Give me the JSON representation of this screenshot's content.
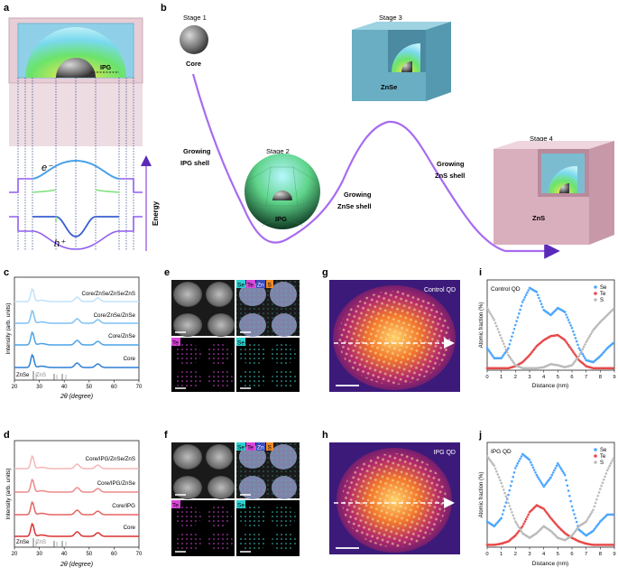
{
  "panels": {
    "a": "a",
    "b": "b",
    "c": "c",
    "d": "d",
    "e": "e",
    "f": "f",
    "g": "g",
    "h": "h",
    "i": "i",
    "j": "j"
  },
  "panel_a": {
    "ipg": "IPG",
    "electron": "e⁻",
    "hole": "h⁺",
    "energy": "Energy"
  },
  "panel_b": {
    "stage1": "Stage 1",
    "core": "Core",
    "stage2": "Stage 2",
    "ipg": "IPG",
    "stage3": "Stage 3",
    "znse": "ZnSe",
    "stage4": "Stage 4",
    "zns": "ZnS",
    "growing_ipg": [
      "Growing",
      "IPG shell"
    ],
    "growing_znse": [
      "Growing",
      "ZnSe shell"
    ],
    "growing_zns": [
      "Growing",
      "ZnS shell"
    ]
  },
  "xrd_common": {
    "ylabel": "Intensity (arb. units)",
    "xlabel": "2θ (degree)",
    "xticks": [
      "20",
      "30",
      "40",
      "50",
      "60",
      "70"
    ],
    "ref_znse": "ZnSe",
    "ref_zns": "ZnS"
  },
  "xrd_c_labels": [
    "Core/ZnSe/ZnSe/ZnS",
    "Core/ZnSe/ZnSe",
    "Core/ZnSe",
    "Core"
  ],
  "xrd_d_labels": [
    "Core/IPG/ZnSe/ZnS",
    "Core/IPG/ZnSe",
    "Core/IPG",
    "Core"
  ],
  "eds_tags": {
    "se": "Se",
    "te": "Te",
    "zn": "Zn",
    "s": "S"
  },
  "haadf": {
    "control": "Control QD",
    "ipg": "IPG QD"
  },
  "profile_common": {
    "ylabel": "Atomic fraction (%)",
    "xlabel": "Distance (nm)",
    "xticks": [
      "0",
      "1",
      "2",
      "3",
      "4",
      "5",
      "6",
      "7",
      "8",
      "9"
    ],
    "legend": [
      "Se",
      "Te",
      "S"
    ]
  },
  "profile_i_title": "Control QD",
  "profile_j_title": "IPG QD",
  "colors": {
    "se_dot": "#4da6ff",
    "te_dot": "#e84a4a",
    "s_dot": "#bbbbbb",
    "tag_se": "#2bd1d1",
    "tag_te": "#d946d9",
    "tag_zn": "#3b4cc0",
    "tag_s": "#f08a24",
    "arrow": "#a86bf0"
  },
  "chart_data": [
    {
      "type": "line",
      "panel": "c",
      "xlabel": "2θ (degree)",
      "ylabel": "Intensity (arb. units)",
      "xlim": [
        20,
        70
      ],
      "series": [
        {
          "name": "Core/ZnSe/ZnSe/ZnS"
        },
        {
          "name": "Core/ZnSe/ZnSe"
        },
        {
          "name": "Core/ZnSe"
        },
        {
          "name": "Core"
        }
      ]
    },
    {
      "type": "line",
      "panel": "d",
      "xlabel": "2θ (degree)",
      "ylabel": "Intensity (arb. units)",
      "xlim": [
        20,
        70
      ],
      "series": [
        {
          "name": "Core/IPG/ZnSe/ZnS"
        },
        {
          "name": "Core/IPG/ZnSe"
        },
        {
          "name": "Core/IPG"
        },
        {
          "name": "Core"
        }
      ]
    },
    {
      "type": "scatter",
      "panel": "i",
      "title": "Control QD",
      "xlabel": "Distance (nm)",
      "ylabel": "Atomic fraction (%)",
      "xlim": [
        0,
        9
      ],
      "series": [
        {
          "name": "Se",
          "x": [
            0,
            0.5,
            1,
            1.5,
            2,
            2.5,
            3,
            3.5,
            4,
            4.5,
            5,
            5.5,
            6,
            6.5,
            7,
            7.5,
            8,
            8.5,
            9
          ],
          "y": [
            22,
            12,
            12,
            22,
            45,
            68,
            82,
            78,
            60,
            55,
            62,
            58,
            42,
            22,
            10,
            8,
            14,
            22,
            28
          ]
        },
        {
          "name": "Te",
          "x": [
            0,
            0.5,
            1,
            1.5,
            2,
            2.5,
            3,
            3.5,
            4,
            4.5,
            5,
            5.5,
            6,
            6.5,
            7,
            7.5,
            8,
            8.5,
            9
          ],
          "y": [
            2,
            2,
            2,
            2,
            4,
            8,
            15,
            24,
            30,
            34,
            35,
            30,
            20,
            10,
            4,
            2,
            2,
            2,
            2
          ]
        },
        {
          "name": "S",
          "x": [
            0,
            0.5,
            1,
            1.5,
            2,
            2.5,
            3,
            3.5,
            4,
            4.5,
            5,
            5.5,
            6,
            6.5,
            7,
            7.5,
            8,
            8.5,
            9
          ],
          "y": [
            62,
            50,
            32,
            15,
            5,
            2,
            2,
            2,
            3,
            6,
            5,
            3,
            5,
            14,
            28,
            40,
            48,
            55,
            62
          ]
        }
      ]
    },
    {
      "type": "scatter",
      "panel": "j",
      "title": "IPG QD",
      "xlabel": "Distance (nm)",
      "ylabel": "Atomic fraction (%)",
      "xlim": [
        0,
        9
      ],
      "series": [
        {
          "name": "Se",
          "x": [
            0,
            0.5,
            1,
            1.5,
            2,
            2.5,
            3,
            3.5,
            4,
            4.5,
            5,
            5.5,
            6,
            6.5,
            7,
            7.5,
            8,
            8.5,
            9
          ],
          "y": [
            22,
            18,
            25,
            45,
            68,
            80,
            75,
            62,
            52,
            60,
            72,
            62,
            35,
            15,
            10,
            14,
            22,
            28,
            28
          ]
        },
        {
          "name": "Te",
          "x": [
            0,
            0.5,
            1,
            1.5,
            2,
            2.5,
            3,
            3.5,
            4,
            4.5,
            5,
            5.5,
            6,
            6.5,
            7,
            7.5,
            8,
            8.5,
            9
          ],
          "y": [
            2,
            2,
            3,
            5,
            10,
            18,
            30,
            36,
            33,
            25,
            18,
            12,
            8,
            5,
            3,
            2,
            2,
            2,
            2
          ]
        },
        {
          "name": "S",
          "x": [
            0,
            0.5,
            1,
            1.5,
            2,
            2.5,
            3,
            3.5,
            4,
            4.5,
            5,
            5.5,
            6,
            6.5,
            7,
            7.5,
            8,
            8.5,
            9
          ],
          "y": [
            78,
            70,
            55,
            38,
            22,
            12,
            8,
            12,
            18,
            14,
            8,
            6,
            10,
            18,
            22,
            32,
            50,
            66,
            78
          ]
        }
      ]
    }
  ]
}
